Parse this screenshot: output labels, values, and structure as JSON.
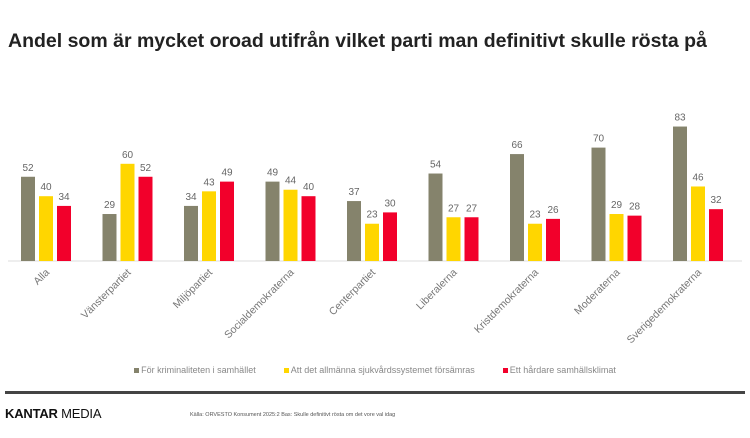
{
  "chart_data": {
    "type": "bar",
    "title": "Andel som är mycket oroad utifrån vilket parti man definitivt skulle rösta på",
    "categories": [
      "Alla",
      "Vänsterpartiet",
      "Miljöpartiet",
      "Socialdemokraterna",
      "Centerpartiet",
      "Liberalerna",
      "Kristdemokraterna",
      "Moderaterna",
      "Sverigedemokraterna"
    ],
    "series": [
      {
        "name": "För kriminaliteten i samhället",
        "color": "#85836C",
        "values": [
          52,
          29,
          34,
          49,
          37,
          54,
          66,
          70,
          83
        ]
      },
      {
        "name": "Att det allmänna sjukvårdssystemet försämras",
        "color": "#FFD600",
        "values": [
          40,
          60,
          43,
          44,
          23,
          27,
          23,
          29,
          46
        ]
      },
      {
        "name": "Ett hårdare samhällsklimat",
        "color": "#F2002B",
        "values": [
          34,
          52,
          49,
          40,
          30,
          27,
          26,
          28,
          32
        ]
      }
    ],
    "ylim": [
      0,
      90
    ],
    "legend": "bottom",
    "grid": false
  },
  "footer": {
    "logo_bold": "KANTAR",
    "logo_light": " MEDIA",
    "source": "Källa: ORVESTO Konsument 2025:2 Bas: Skulle definitivt rösta om det vore val idag"
  }
}
